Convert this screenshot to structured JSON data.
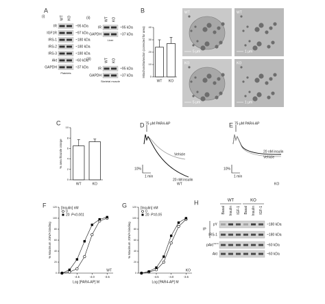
{
  "panel_a": {
    "letter": "A",
    "blot_i": {
      "label": "(i)",
      "columns": [
        "WT",
        "KO"
      ],
      "rows": [
        "IR",
        "IGF1R",
        "IRS-1",
        "IRS-2",
        "IRS-3",
        "Akt",
        "GAPDH"
      ],
      "sizes": [
        "~95 kDa",
        "~97 kDa",
        "~180 kDa",
        "~180 kDa",
        "~180 kDa",
        "~60 kDa",
        "~37 kDa"
      ],
      "tissue": "Platelets"
    },
    "blot_ii": {
      "label": "(ii)",
      "columns": [
        "WT",
        "KO"
      ],
      "rows": [
        "IR",
        "GAPDH"
      ],
      "sizes": [
        "~95 kDa",
        "~37 kDa"
      ],
      "tissue": "Liver"
    },
    "blot_iii": {
      "label": "(iii)",
      "columns": [
        "WT",
        "KO"
      ],
      "rows": [
        "IR",
        "GAPDH"
      ],
      "sizes": [
        "~95 kDa",
        "~37 kDa"
      ],
      "tissue": "Skeletal muscle"
    }
  },
  "panel_b": {
    "letter": "B",
    "type": "bar",
    "ylabel": "Mitochondria/section (corrected for area)",
    "categories": [
      "WT",
      "KO"
    ],
    "values": [
      24,
      27
    ],
    "errors": [
      6,
      5
    ],
    "ylim": [
      0,
      40
    ],
    "yticks": [
      0,
      10,
      20,
      30,
      40
    ],
    "color": "#ffffff",
    "images": [
      {
        "genotype": "WT",
        "scale": "5 μm"
      },
      {
        "genotype": "WT",
        "scale": "1 μm"
      },
      {
        "genotype": "KO",
        "scale": "5 μm"
      },
      {
        "genotype": "KO",
        "scale": "1 μm"
      }
    ]
  },
  "panel_c": {
    "letter": "C",
    "type": "bar",
    "ylabel": "% area thiazole orange",
    "categories": [
      "WT",
      "KO"
    ],
    "values": [
      6.5,
      7.3
    ],
    "errors": [
      1.2,
      0.5
    ],
    "ylim": [
      0,
      10
    ],
    "yticks": [
      0,
      2,
      4,
      6,
      8,
      10
    ],
    "color": "#ffffff"
  },
  "panel_d": {
    "letter": "D",
    "stimulus": "75 μM PAR4-AP",
    "vehicle": "Vehicle",
    "insulin": "20 nM insulin",
    "genotype": "WT",
    "scale_y": "10%",
    "scale_x": "1 min"
  },
  "panel_e": {
    "letter": "E",
    "stimulus": "75 μM PAR4-AP",
    "vehicle": "Vehicle",
    "insulin": "20 nM insulin",
    "genotype": "KO",
    "scale_y": "10%",
    "scale_x": "1 min"
  },
  "panel_f": {
    "letter": "F",
    "type": "line",
    "xlabel": "Log [PAR4-AP] M",
    "ylabel": "% Maximum JON/A binding",
    "legend_title": "[Insulin] nM",
    "annotation": "P<0.001",
    "genotype": "WT",
    "xlim": [
      -5.1,
      -3.3
    ],
    "xticks": [
      -4.5,
      {
        "value": -4,
        "label": "-4.0"
      },
      -3.5
    ],
    "ylim": [
      0,
      120
    ],
    "yticks": [
      0,
      20,
      40,
      60,
      80,
      100,
      120
    ],
    "series": [
      {
        "name": "0",
        "marker": "open",
        "color": "#000000",
        "x": [
          -5,
          -4.75,
          -4.5,
          -4.25,
          -4,
          -3.75,
          -3.5
        ],
        "values": [
          0,
          2,
          8,
          30,
          70,
          95,
          100
        ]
      },
      {
        "name": "20",
        "marker": "filled",
        "color": "#000000",
        "x": [
          -5,
          -4.75,
          -4.5,
          -4.25,
          -4,
          -3.75,
          -3.5
        ],
        "values": [
          0,
          6,
          25,
          58,
          88,
          98,
          102
        ]
      }
    ]
  },
  "panel_g": {
    "letter": "G",
    "type": "line",
    "xlabel": "Log [PAR4-AP] M",
    "ylabel": "% Maximum JON/A binding",
    "legend_title": "[Insulin] nM",
    "annotation": "P=0.05",
    "genotype": "KO",
    "xlim": [
      -5.1,
      -3.3
    ],
    "xticks": [
      -4.5,
      {
        "value": -4,
        "label": "-4.0"
      },
      -3.5
    ],
    "ylim": [
      0,
      120
    ],
    "yticks": [
      0,
      20,
      40,
      60,
      80,
      100,
      120
    ],
    "series": [
      {
        "name": "0",
        "marker": "open",
        "color": "#000000",
        "x": [
          -5,
          -4.75,
          -4.5,
          -4.25,
          -4,
          -3.75,
          -3.5
        ],
        "values": [
          0,
          2,
          6,
          20,
          55,
          85,
          98
        ]
      },
      {
        "name": "20",
        "marker": "filled",
        "color": "#000000",
        "x": [
          -5,
          -4.75,
          -4.5,
          -4.25,
          -4,
          -3.75,
          -3.5
        ],
        "values": [
          0,
          3,
          10,
          30,
          68,
          92,
          100
        ]
      }
    ]
  },
  "panel_h": {
    "letter": "H",
    "groups": [
      "WT",
      "KO"
    ],
    "lanes": [
      "Basal",
      "Insulin",
      "IGF-1",
      "Basal",
      "Insulin",
      "IGF-1"
    ],
    "ip": "IP",
    "rows": [
      {
        "label": "pY",
        "size": "~180 kDa"
      },
      {
        "label": "IRS-1",
        "size": "~180 kDa"
      },
      {
        "label": "pAkt",
        "sup": "S473",
        "size": "~60 kDa"
      },
      {
        "label": "Akt",
        "size": "~60 kDa"
      }
    ]
  }
}
